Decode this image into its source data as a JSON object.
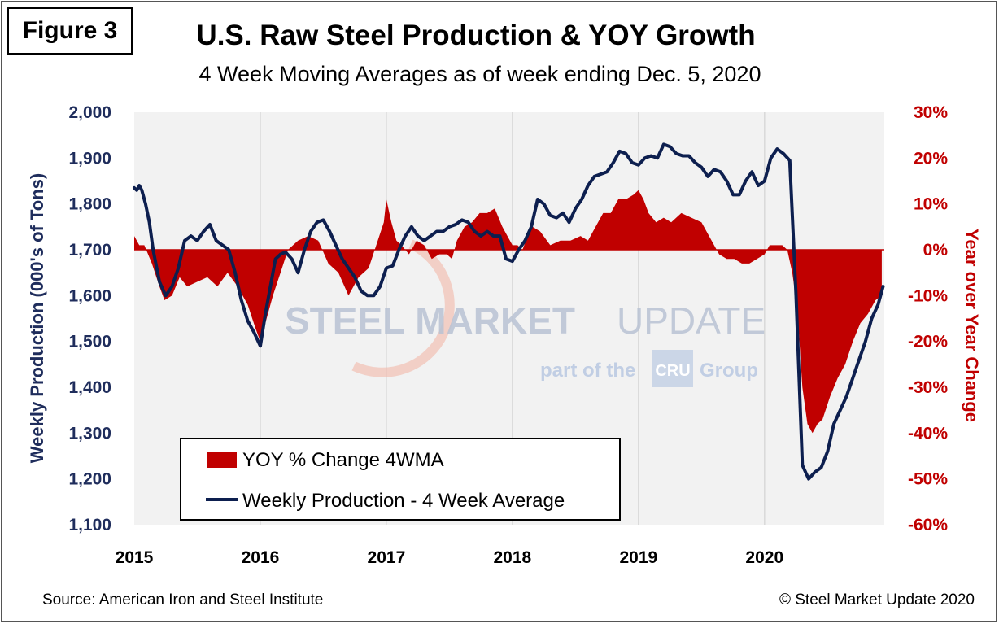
{
  "figure_label": "Figure 3",
  "source": "Source: American Iron and Steel Institute",
  "copyright": "© Steel Market Update 2020",
  "watermark": {
    "main_a": "STEEL MARKET",
    "main_b": "UPDATE",
    "sub_a": "part of the",
    "sub_b": "CRU",
    "sub_c": "Group"
  },
  "colors": {
    "production": "#0d1f4f",
    "yoy": "#c00000",
    "plot_bg": "#f2f2f2",
    "grid": "#d9d9d9"
  },
  "chart_data": {
    "type": "line+area",
    "title": "U.S. Raw Steel Production & YOY Growth",
    "subtitle": "4 Week Moving Averages as of week ending Dec. 5, 2020",
    "ylabel_left": "Weekly Production (000's of Tons)",
    "ylabel_right": "Year over Year Change",
    "ylim_left": [
      1100,
      2000
    ],
    "ylim_right": [
      -60,
      30
    ],
    "xlim": [
      2015.0,
      2020.95
    ],
    "x_ticks": [
      2015,
      2016,
      2017,
      2018,
      2019,
      2020
    ],
    "x_tick_labels": [
      "2015",
      "2016",
      "2017",
      "2018",
      "2019",
      "2020"
    ],
    "y_left_ticks": [
      1100,
      1200,
      1300,
      1400,
      1500,
      1600,
      1700,
      1800,
      1900,
      2000
    ],
    "y_left_tick_labels": [
      "1,100",
      "1,200",
      "1,300",
      "1,400",
      "1,500",
      "1,600",
      "1,700",
      "1,800",
      "1,900",
      "2,000"
    ],
    "y_right_ticks": [
      -60,
      -50,
      -40,
      -30,
      -20,
      -10,
      0,
      10,
      20,
      30
    ],
    "y_right_tick_labels": [
      "-60%",
      "-50%",
      "-40%",
      "-30%",
      "-20%",
      "-10%",
      "0%",
      "10%",
      "20%",
      "30%"
    ],
    "grid": "vertical",
    "legend_position": "bottom-left",
    "series": [
      {
        "name": "YOY % Change 4WMA",
        "kind": "area",
        "axis": "right",
        "x": [
          2015.0,
          2015.04,
          2015.08,
          2015.14,
          2015.2,
          2015.24,
          2015.3,
          2015.36,
          2015.42,
          2015.5,
          2015.58,
          2015.66,
          2015.74,
          2015.82,
          2015.9,
          2015.96,
          2016.0,
          2016.04,
          2016.1,
          2016.16,
          2016.22,
          2016.3,
          2016.38,
          2016.46,
          2016.54,
          2016.62,
          2016.7,
          2016.78,
          2016.86,
          2016.92,
          2016.98,
          2017.0,
          2017.04,
          2017.08,
          2017.12,
          2017.18,
          2017.24,
          2017.3,
          2017.36,
          2017.42,
          2017.48,
          2017.52,
          2017.56,
          2017.62,
          2017.68,
          2017.74,
          2017.8,
          2017.86,
          2017.92,
          2017.96,
          2018.0,
          2018.04,
          2018.08,
          2018.12,
          2018.16,
          2018.22,
          2018.3,
          2018.38,
          2018.46,
          2018.54,
          2018.6,
          2018.66,
          2018.72,
          2018.78,
          2018.84,
          2018.9,
          2018.96,
          2019.0,
          2019.04,
          2019.08,
          2019.14,
          2019.2,
          2019.26,
          2019.34,
          2019.42,
          2019.5,
          2019.58,
          2019.64,
          2019.7,
          2019.76,
          2019.82,
          2019.88,
          2019.94,
          2020.0,
          2020.04,
          2020.1,
          2020.14,
          2020.18,
          2020.22,
          2020.26,
          2020.3,
          2020.34,
          2020.38,
          2020.42,
          2020.46,
          2020.52,
          2020.58,
          2020.64,
          2020.7,
          2020.76,
          2020.82,
          2020.88,
          2020.93
        ],
        "values": [
          3,
          1,
          1,
          -3,
          -8,
          -11,
          -10,
          -6,
          -8,
          -7,
          -6,
          -8,
          -5,
          -8,
          -12,
          -17,
          -20,
          -16,
          -10,
          -5,
          0,
          2,
          3,
          2,
          -3,
          -5,
          -10,
          -6,
          -4,
          1,
          6,
          11,
          6,
          2,
          1,
          -1,
          2,
          1,
          -2,
          -1,
          -1,
          -2,
          2,
          5,
          6,
          8,
          8,
          9,
          5,
          3,
          1,
          1,
          0,
          3,
          5,
          4,
          1,
          2,
          2,
          3,
          2,
          5,
          8,
          8,
          11,
          11,
          12,
          13,
          11,
          8,
          6,
          7,
          6,
          8,
          7,
          6,
          2,
          -1,
          -2,
          -2,
          -3,
          -3,
          -2,
          -1,
          1,
          1,
          1,
          0,
          -5,
          -13,
          -30,
          -38,
          -40,
          -38,
          -37,
          -32,
          -28,
          -25,
          -20,
          -16,
          -14,
          -11,
          -10
        ]
      },
      {
        "name": "Weekly Production - 4 Week Average",
        "kind": "line",
        "axis": "left",
        "x": [
          2015.0,
          2015.02,
          2015.04,
          2015.06,
          2015.09,
          2015.12,
          2015.15,
          2015.2,
          2015.25,
          2015.3,
          2015.35,
          2015.4,
          2015.45,
          2015.5,
          2015.55,
          2015.6,
          2015.65,
          2015.7,
          2015.75,
          2015.8,
          2015.85,
          2015.9,
          2015.95,
          2016.0,
          2016.04,
          2016.08,
          2016.12,
          2016.16,
          2016.2,
          2016.25,
          2016.3,
          2016.35,
          2016.4,
          2016.45,
          2016.5,
          2016.55,
          2016.6,
          2016.65,
          2016.7,
          2016.75,
          2016.8,
          2016.85,
          2016.9,
          2016.95,
          2017.0,
          2017.05,
          2017.1,
          2017.15,
          2017.2,
          2017.25,
          2017.3,
          2017.35,
          2017.4,
          2017.45,
          2017.5,
          2017.55,
          2017.6,
          2017.65,
          2017.7,
          2017.75,
          2017.8,
          2017.85,
          2017.9,
          2017.95,
          2018.0,
          2018.05,
          2018.1,
          2018.15,
          2018.2,
          2018.25,
          2018.3,
          2018.35,
          2018.4,
          2018.45,
          2018.5,
          2018.55,
          2018.6,
          2018.65,
          2018.7,
          2018.75,
          2018.8,
          2018.85,
          2018.9,
          2018.95,
          2019.0,
          2019.05,
          2019.1,
          2019.15,
          2019.2,
          2019.25,
          2019.3,
          2019.35,
          2019.4,
          2019.45,
          2019.5,
          2019.55,
          2019.6,
          2019.65,
          2019.7,
          2019.75,
          2019.8,
          2019.85,
          2019.9,
          2019.95,
          2020.0,
          2020.05,
          2020.1,
          2020.15,
          2020.2,
          2020.25,
          2020.3,
          2020.35,
          2020.4,
          2020.45,
          2020.5,
          2020.55,
          2020.6,
          2020.65,
          2020.7,
          2020.75,
          2020.8,
          2020.85,
          2020.9,
          2020.94
        ],
        "values": [
          1835,
          1830,
          1840,
          1830,
          1800,
          1760,
          1700,
          1630,
          1600,
          1620,
          1660,
          1720,
          1730,
          1720,
          1740,
          1755,
          1720,
          1710,
          1700,
          1650,
          1590,
          1545,
          1520,
          1490,
          1560,
          1620,
          1680,
          1690,
          1695,
          1680,
          1650,
          1700,
          1740,
          1760,
          1765,
          1740,
          1710,
          1680,
          1660,
          1640,
          1610,
          1600,
          1600,
          1620,
          1660,
          1665,
          1700,
          1730,
          1750,
          1730,
          1720,
          1730,
          1740,
          1740,
          1750,
          1755,
          1765,
          1760,
          1740,
          1730,
          1740,
          1730,
          1730,
          1680,
          1675,
          1700,
          1720,
          1750,
          1810,
          1800,
          1775,
          1770,
          1780,
          1760,
          1790,
          1810,
          1840,
          1860,
          1865,
          1870,
          1890,
          1915,
          1910,
          1890,
          1885,
          1900,
          1905,
          1900,
          1930,
          1925,
          1910,
          1905,
          1905,
          1890,
          1880,
          1860,
          1875,
          1870,
          1850,
          1820,
          1820,
          1850,
          1870,
          1840,
          1850,
          1900,
          1920,
          1910,
          1895,
          1600,
          1230,
          1200,
          1215,
          1225,
          1260,
          1320,
          1350,
          1380,
          1420,
          1460,
          1500,
          1550,
          1580,
          1620
        ]
      }
    ]
  }
}
